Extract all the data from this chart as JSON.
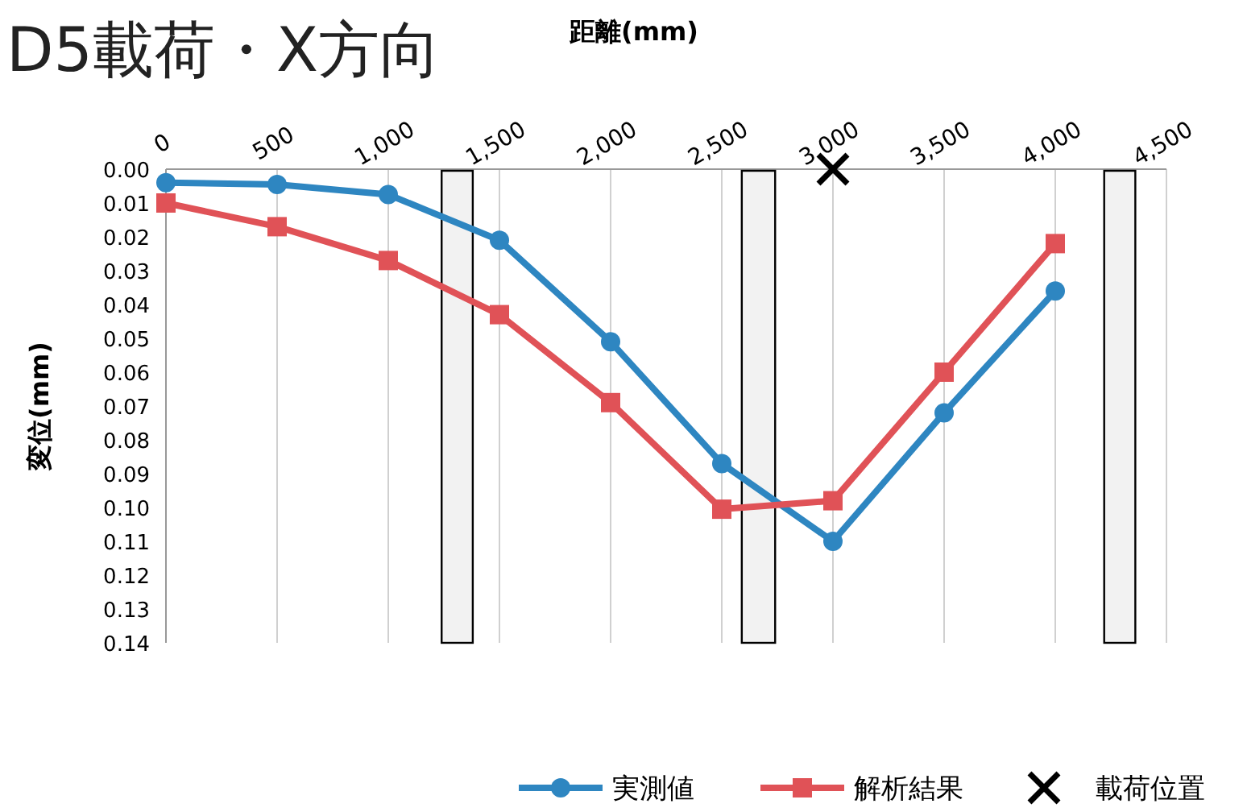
{
  "chart_data": {
    "type": "line",
    "title": "D5載荷・X方向",
    "xlabel": "距離(mm)",
    "ylabel": "変位(mm)",
    "xlim": [
      0,
      4500
    ],
    "xticks": [
      0,
      {
        "value": 500,
        "label": "500"
      },
      {
        "value": 1000,
        "label": "1,000"
      },
      {
        "value": 1500,
        "label": "1,500"
      },
      {
        "value": 2000,
        "label": "2,000"
      },
      {
        "value": 2500,
        "label": "2,500"
      },
      {
        "value": 3000,
        "label": "3,000"
      },
      {
        "value": 3500,
        "label": "3,500"
      },
      {
        "value": 4000,
        "label": "4,000"
      },
      {
        "value": 4500,
        "label": "4,500"
      }
    ],
    "ylim": [
      0.14,
      0
    ],
    "yticks": [
      {
        "value": 0,
        "label": "0.00"
      },
      {
        "value": 0.01,
        "label": "0.01"
      },
      {
        "value": 0.02,
        "label": "0.02"
      },
      {
        "value": 0.03,
        "label": "0.03"
      },
      {
        "value": 0.04,
        "label": "0.04"
      },
      {
        "value": 0.05,
        "label": "0.05"
      },
      {
        "value": 0.06,
        "label": "0.06"
      },
      {
        "value": 0.07,
        "label": "0.07"
      },
      {
        "value": 0.08,
        "label": "0.08"
      },
      {
        "value": 0.09,
        "label": "0.09"
      },
      {
        "value": 0.1,
        "label": "0.10"
      },
      {
        "value": 0.11,
        "label": "0.11"
      },
      {
        "value": 0.12,
        "label": "0.12"
      },
      {
        "value": 0.13,
        "label": "0.13"
      },
      {
        "value": 0.14,
        "label": "0.14"
      }
    ],
    "grid": "x",
    "legend": "bottom",
    "bands": [
      {
        "axis": "x",
        "from": 1240,
        "to": 1380,
        "color": "#f2f2f2"
      },
      {
        "axis": "x",
        "from": 2590,
        "to": 2740,
        "color": "#f2f2f2"
      },
      {
        "axis": "x",
        "from": 4220,
        "to": 4360,
        "color": "#f2f2f2"
      }
    ],
    "series": [
      {
        "name": "実測値",
        "type": "line",
        "marker": "circle",
        "color": "#2e86c1",
        "x": [
          0,
          500,
          1000,
          1500,
          2000,
          2500,
          3000,
          3500,
          4000
        ],
        "values": [
          0.004,
          0.0045,
          0.0075,
          0.021,
          0.051,
          0.087,
          0.11,
          0.072,
          0.036
        ]
      },
      {
        "name": "解析結果",
        "type": "line",
        "marker": "square",
        "color": "#e05257",
        "x": [
          0,
          500,
          1000,
          1500,
          2000,
          2500,
          3000,
          3500,
          4000
        ],
        "values": [
          0.01,
          0.017,
          0.027,
          0.043,
          0.069,
          0.1005,
          0.098,
          0.06,
          0.022
        ]
      },
      {
        "name": "載荷位置",
        "type": "scatter",
        "marker": "cross",
        "color": "#000000",
        "x": [
          3000
        ],
        "values": [
          0
        ]
      }
    ]
  }
}
